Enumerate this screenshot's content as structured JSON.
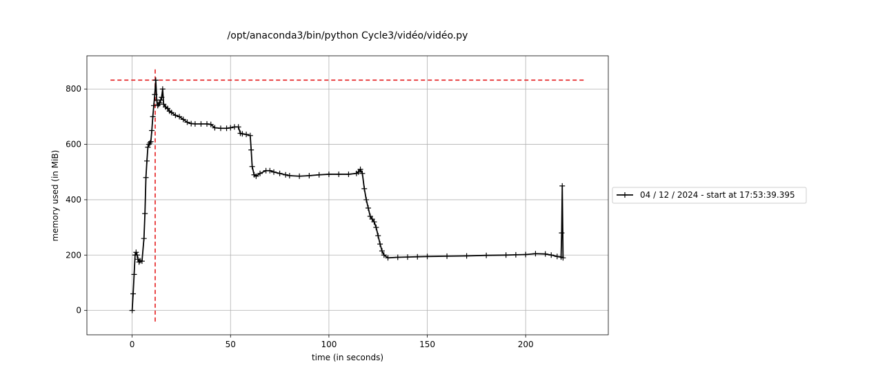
{
  "chart_data": {
    "type": "line",
    "title": "/opt/anaconda3/bin/python Cycle3/vidéo/vidéo.py",
    "xlabel": "time (in seconds)",
    "ylabel": "memory used (in MiB)",
    "xlim": [
      -23,
      242
    ],
    "ylim": [
      -88,
      920
    ],
    "xticks": [
      0,
      50,
      100,
      150,
      200
    ],
    "yticks": [
      0,
      200,
      400,
      600,
      800
    ],
    "grid": true,
    "legend_placement": "outside-right",
    "colors": {
      "series": "#000000",
      "peak_marker": "#e41a1c",
      "grid": "#b0b0b0"
    },
    "series": [
      {
        "name": "04 / 12 / 2024 - start at 17:53:39.395",
        "marker": "plus",
        "x": [
          0,
          0.5,
          1,
          1.5,
          2,
          2.5,
          3,
          3.5,
          4,
          5,
          6,
          6.5,
          7,
          7.5,
          8,
          8.5,
          9,
          9.5,
          10,
          10.5,
          11,
          11.5,
          12,
          12.5,
          13,
          13.5,
          14,
          14.5,
          15,
          15.5,
          16,
          17,
          18,
          19,
          20,
          22,
          24,
          26,
          28,
          30,
          32,
          35,
          38,
          40,
          42,
          45,
          48,
          50,
          52,
          54,
          55,
          56,
          58,
          60,
          60.5,
          61,
          62,
          63,
          65,
          68,
          70,
          72,
          75,
          78,
          80,
          85,
          90,
          95,
          100,
          105,
          110,
          114,
          115,
          116,
          117,
          118,
          119,
          120,
          121,
          122,
          123,
          124,
          125,
          126,
          127,
          128,
          130,
          135,
          140,
          145,
          150,
          160,
          170,
          180,
          190,
          195,
          200,
          205,
          210,
          213,
          216,
          218,
          218.3,
          218.6,
          219
        ],
        "y": [
          0,
          60,
          130,
          200,
          210,
          200,
          185,
          175,
          180,
          178,
          260,
          350,
          480,
          540,
          590,
          600,
          605,
          610,
          650,
          700,
          740,
          780,
          832,
          760,
          740,
          745,
          750,
          760,
          770,
          800,
          745,
          735,
          730,
          720,
          715,
          705,
          700,
          690,
          680,
          675,
          674,
          674,
          674,
          672,
          660,
          658,
          658,
          660,
          663,
          663,
          640,
          638,
          636,
          632,
          580,
          520,
          490,
          485,
          495,
          505,
          505,
          500,
          495,
          490,
          487,
          485,
          487,
          490,
          492,
          492,
          492,
          495,
          500,
          510,
          495,
          440,
          400,
          370,
          340,
          330,
          320,
          300,
          270,
          240,
          215,
          200,
          190,
          192,
          193,
          194,
          195,
          196,
          197,
          199,
          200,
          201,
          202,
          205,
          204,
          200,
          195,
          193,
          280,
          450,
          190
        ]
      }
    ],
    "reference_lines": [
      {
        "orientation": "horizontal",
        "value": 832,
        "from": -11,
        "to": 230
      },
      {
        "orientation": "vertical",
        "value": 11.7,
        "from": -40,
        "to": 875
      }
    ]
  }
}
